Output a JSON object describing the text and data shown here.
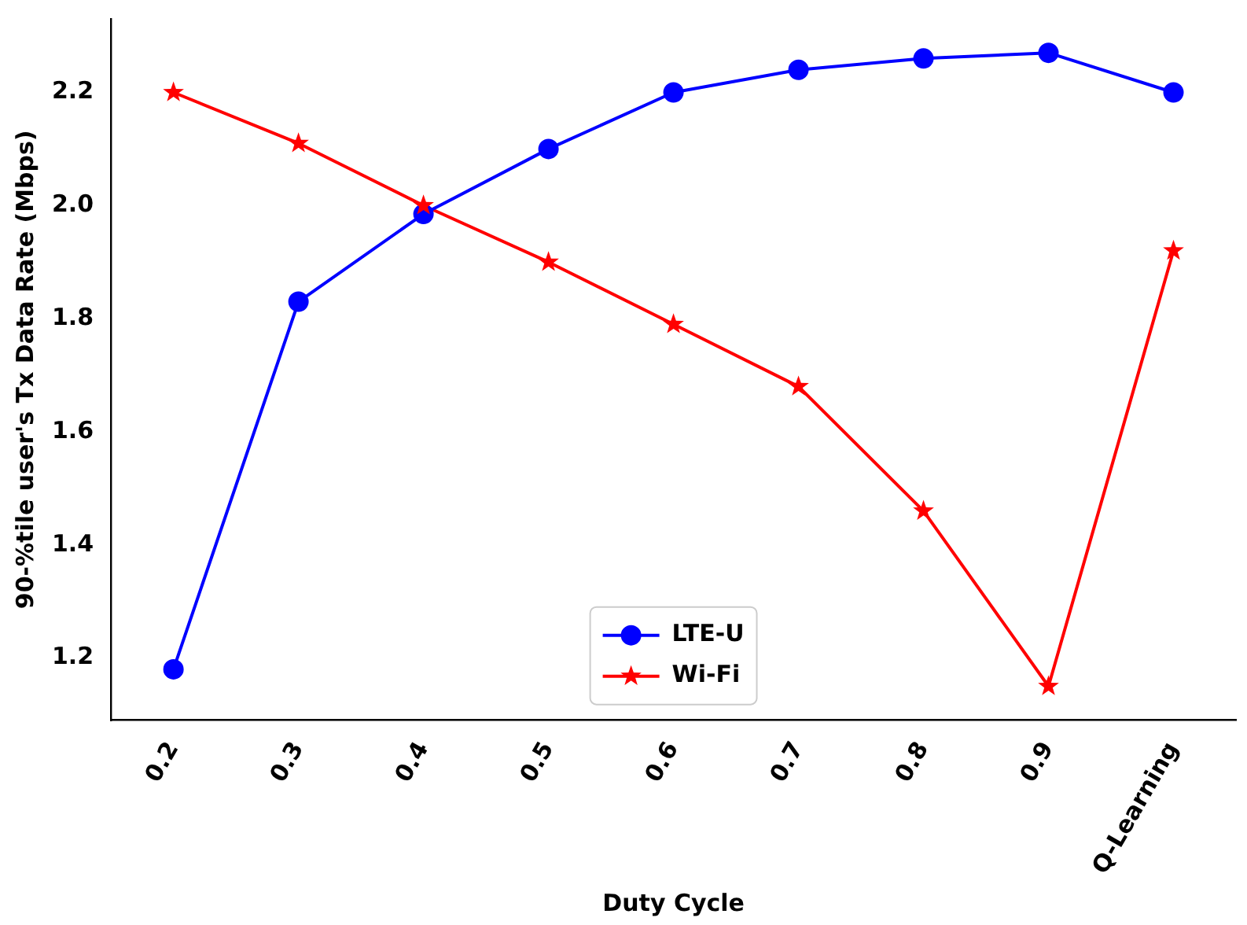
{
  "chart_data": {
    "type": "line",
    "xlabel": "Duty Cycle",
    "ylabel": "90-%tile user's Tx Data Rate (Mbps)",
    "categories": [
      "0.2",
      "0.3",
      "0.4",
      "0.5",
      "0.6",
      "0.7",
      "0.8",
      "0.9",
      "Q-Learning"
    ],
    "series": [
      {
        "name": "LTE-U",
        "color": "#0000ff",
        "marker": "circle",
        "values": [
          1.18,
          1.83,
          1.985,
          2.1,
          2.2,
          2.24,
          2.26,
          2.27,
          2.2
        ]
      },
      {
        "name": "Wi-Fi",
        "color": "#ff0000",
        "marker": "star",
        "values": [
          2.2,
          2.11,
          2.0,
          1.9,
          1.79,
          1.68,
          1.46,
          1.15,
          1.92
        ]
      }
    ],
    "ylim": [
      1.09,
      2.33
    ],
    "yticks": [
      1.2,
      1.4,
      1.6,
      1.8,
      {
        "value": 2,
        "label": "2.0"
      },
      2.2
    ],
    "grid": false,
    "legend": "bottom",
    "line_style": "solid"
  }
}
